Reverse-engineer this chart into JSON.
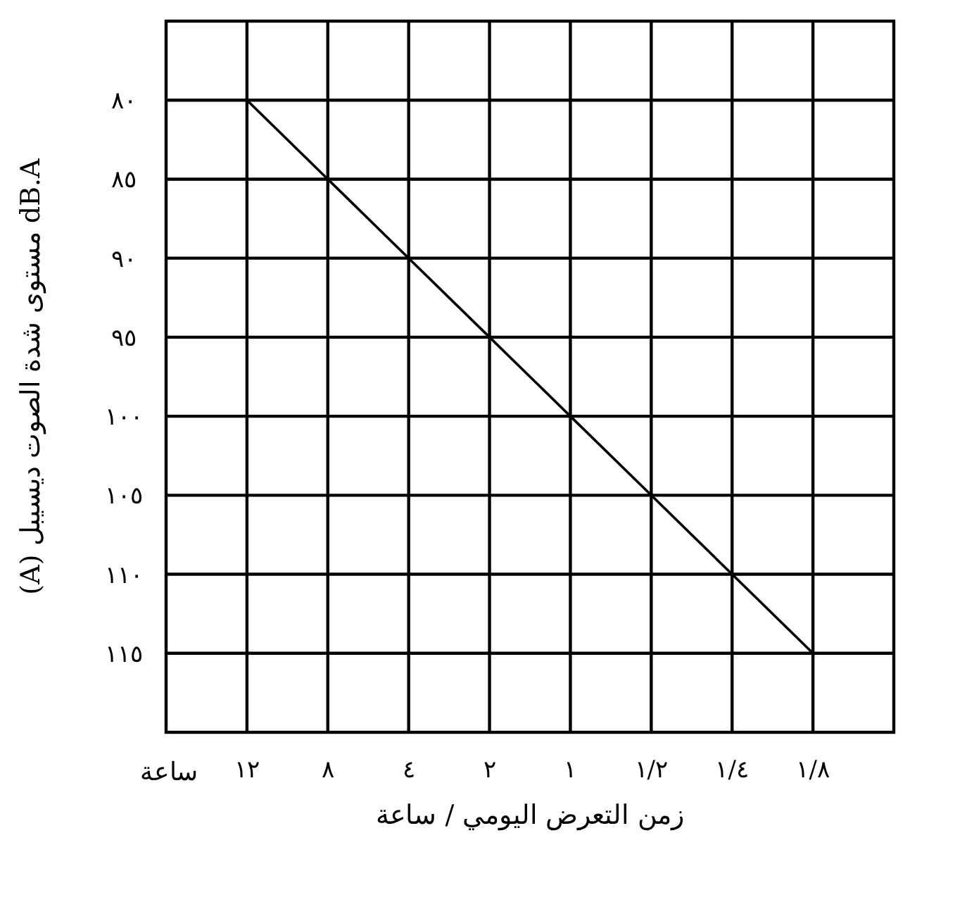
{
  "chart_data": {
    "type": "line",
    "xlabel": "زمن التعرض اليومي / ساعة",
    "ylabel": "dB.A مستوى شدة الصوت ديسيبل (A)",
    "categories": [
      "١٢",
      "٨",
      "٤",
      "٢",
      "١",
      "١/٢",
      "١/٤",
      "١/٨"
    ],
    "series": [
      {
        "color": "#000000",
        "values": [
          80,
          85,
          90,
          95,
          100,
          105,
          110,
          115
        ]
      }
    ],
    "ylim": [
      120,
      75
    ],
    "yticks": [
      {
        "value": 80,
        "label": "٨٠"
      },
      {
        "value": 85,
        "label": "٨٥"
      },
      {
        "value": 90,
        "label": "٩٠"
      },
      {
        "value": 95,
        "label": "٩٥"
      },
      {
        "value": 100,
        "label": "١٠٠"
      },
      {
        "value": 105,
        "label": "١٠٥"
      },
      {
        "value": 110,
        "label": "١١٠"
      },
      {
        "value": 115,
        "label": "١١٥"
      }
    ],
    "annotations": [
      "ساعة"
    ],
    "grid": true,
    "marker": "none",
    "line_style": "solid"
  }
}
